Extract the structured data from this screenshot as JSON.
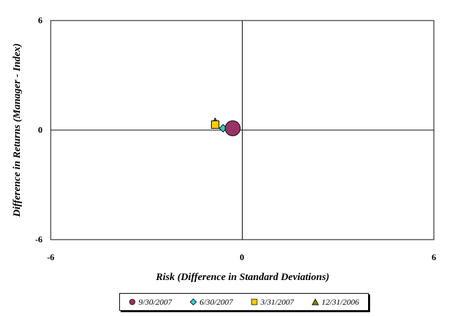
{
  "chart_data": {
    "type": "scatter",
    "title": "",
    "xlabel": "Risk (Difference in Standard Deviations)",
    "ylabel": "Difference in Returns (Manager - Index)",
    "xlim": [
      -6,
      6
    ],
    "ylim": [
      -6,
      6
    ],
    "x_ticks": [
      "-6",
      "0",
      "6"
    ],
    "y_ticks": [
      "6",
      "0",
      "-6"
    ],
    "grid": false,
    "legend_position": "bottom",
    "series": [
      {
        "name": "9/30/2007",
        "marker": "circle",
        "color": "#993366",
        "points": [
          {
            "x": -0.3,
            "y": 0.1
          }
        ],
        "size": "large"
      },
      {
        "name": "6/30/2007",
        "marker": "diamond",
        "color": "#33CCCC",
        "points": [
          {
            "x": -0.6,
            "y": 0.1
          }
        ],
        "size": "small"
      },
      {
        "name": "3/31/2007",
        "marker": "square",
        "color": "#FFCC00",
        "points": [
          {
            "x": -0.85,
            "y": 0.3
          }
        ],
        "size": "small"
      },
      {
        "name": "12/31/2006",
        "marker": "triangle",
        "color": "#808000",
        "points": [
          {
            "x": -0.85,
            "y": 0.45
          }
        ],
        "size": "small"
      }
    ]
  }
}
